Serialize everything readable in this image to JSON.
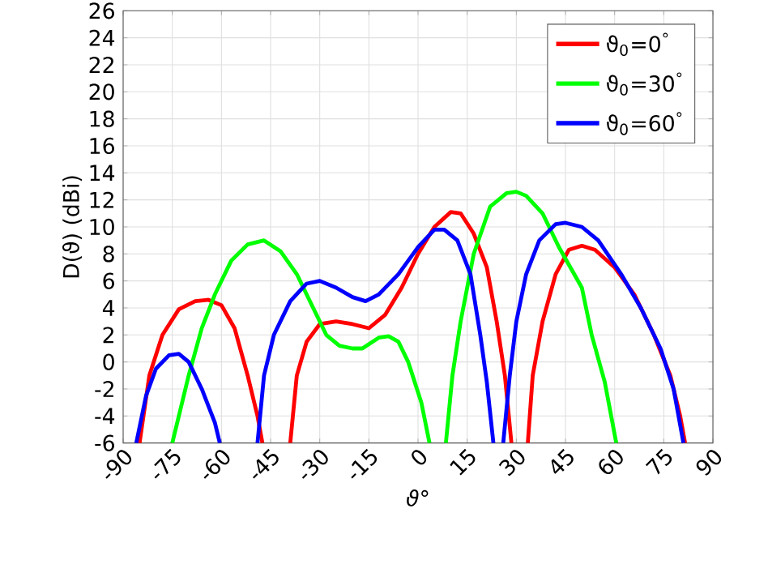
{
  "chart_data": {
    "type": "line",
    "xlabel": "ϑ°",
    "ylabel": "D(ϑ) (dBi)",
    "xlim": [
      -90,
      90
    ],
    "ylim": [
      -6,
      26
    ],
    "xticks": [
      -90,
      -75,
      -60,
      -45,
      -30,
      -15,
      0,
      15,
      30,
      45,
      60,
      75,
      90
    ],
    "yticks": [
      -6,
      -4,
      -2,
      0,
      2,
      4,
      6,
      8,
      10,
      12,
      14,
      16,
      18,
      20,
      22,
      24,
      26
    ],
    "grid": true,
    "legend": "top right",
    "marker": "none",
    "line_style": "solid",
    "series": [
      {
        "name": "ϑ$_{0}$=0$^{°}$",
        "color": "#ff0000",
        "x": [
          -85,
          -82,
          -78,
          -73,
          -68,
          -64,
          -60,
          -56,
          -52,
          -49,
          -47.5,
          -43,
          -39,
          -37,
          -34,
          -30,
          -25,
          -20,
          -15,
          -10,
          -5,
          0,
          5,
          10,
          13,
          17,
          21,
          24,
          26.5,
          28.5,
          31,
          33.5,
          35,
          38,
          42,
          46,
          50,
          54,
          60,
          66,
          72,
          77,
          80,
          81.5
        ],
        "values": [
          -6,
          -1,
          2,
          3.9,
          4.5,
          4.6,
          4.2,
          2.5,
          -1,
          -4,
          -6,
          null,
          -6,
          -1,
          1.5,
          2.8,
          3.0,
          2.8,
          2.5,
          3.5,
          5.5,
          8,
          10,
          11.1,
          11,
          9.5,
          7,
          3,
          -1,
          -6,
          null,
          -6,
          -1,
          3,
          6.5,
          8.3,
          8.6,
          8.3,
          7,
          5,
          2,
          -1,
          -4,
          -6
        ]
      },
      {
        "name": "ϑ$_{0}$=30$^{°}$",
        "color": "#00ff00",
        "x": [
          -75,
          -70,
          -66,
          -62,
          -57,
          -52,
          -47,
          -42,
          -37,
          -32,
          -28,
          -24,
          -20,
          -17,
          -12,
          -9,
          -6,
          -3,
          1,
          3.5,
          6,
          8.5,
          10.5,
          13,
          17,
          22,
          27,
          30,
          33,
          38,
          43,
          50,
          53,
          57,
          60.5
        ],
        "values": [
          -6,
          -1,
          2.5,
          5,
          7.5,
          8.7,
          9.0,
          8.2,
          6.5,
          4,
          2,
          1.2,
          1.0,
          1.0,
          1.8,
          1.9,
          1.5,
          0,
          -3,
          -6,
          null,
          -6,
          -1,
          3,
          8,
          11.5,
          12.5,
          12.6,
          12.3,
          11,
          8.5,
          5.5,
          2,
          -1.5,
          -6
        ]
      },
      {
        "name": "ϑ$_{0}$=60$^{°}$",
        "color": "#0000ff",
        "x": [
          -86,
          -83,
          -80,
          -76,
          -73,
          -70,
          -66,
          -62,
          -60.5,
          -55,
          -49,
          -47,
          -44,
          -39,
          -34,
          -30,
          -25,
          -20,
          -16,
          -12,
          -6,
          0,
          5,
          8,
          12,
          16,
          19,
          21,
          23,
          24.5,
          26,
          28,
          30,
          33,
          37,
          42,
          45,
          50,
          55,
          62,
          68,
          74,
          78,
          81
        ],
        "values": [
          -6,
          -2.5,
          -0.5,
          0.5,
          0.6,
          0,
          -2,
          -4.5,
          -6,
          null,
          -6,
          -1,
          2,
          4.5,
          5.8,
          6.0,
          5.5,
          4.8,
          4.5,
          5,
          6.5,
          8.5,
          9.8,
          9.8,
          9,
          6.5,
          2,
          -1.5,
          -6,
          null,
          -6,
          -1,
          3,
          6.5,
          9,
          10.2,
          10.3,
          10,
          9,
          6.5,
          4,
          1,
          -2,
          -6
        ]
      }
    ]
  }
}
